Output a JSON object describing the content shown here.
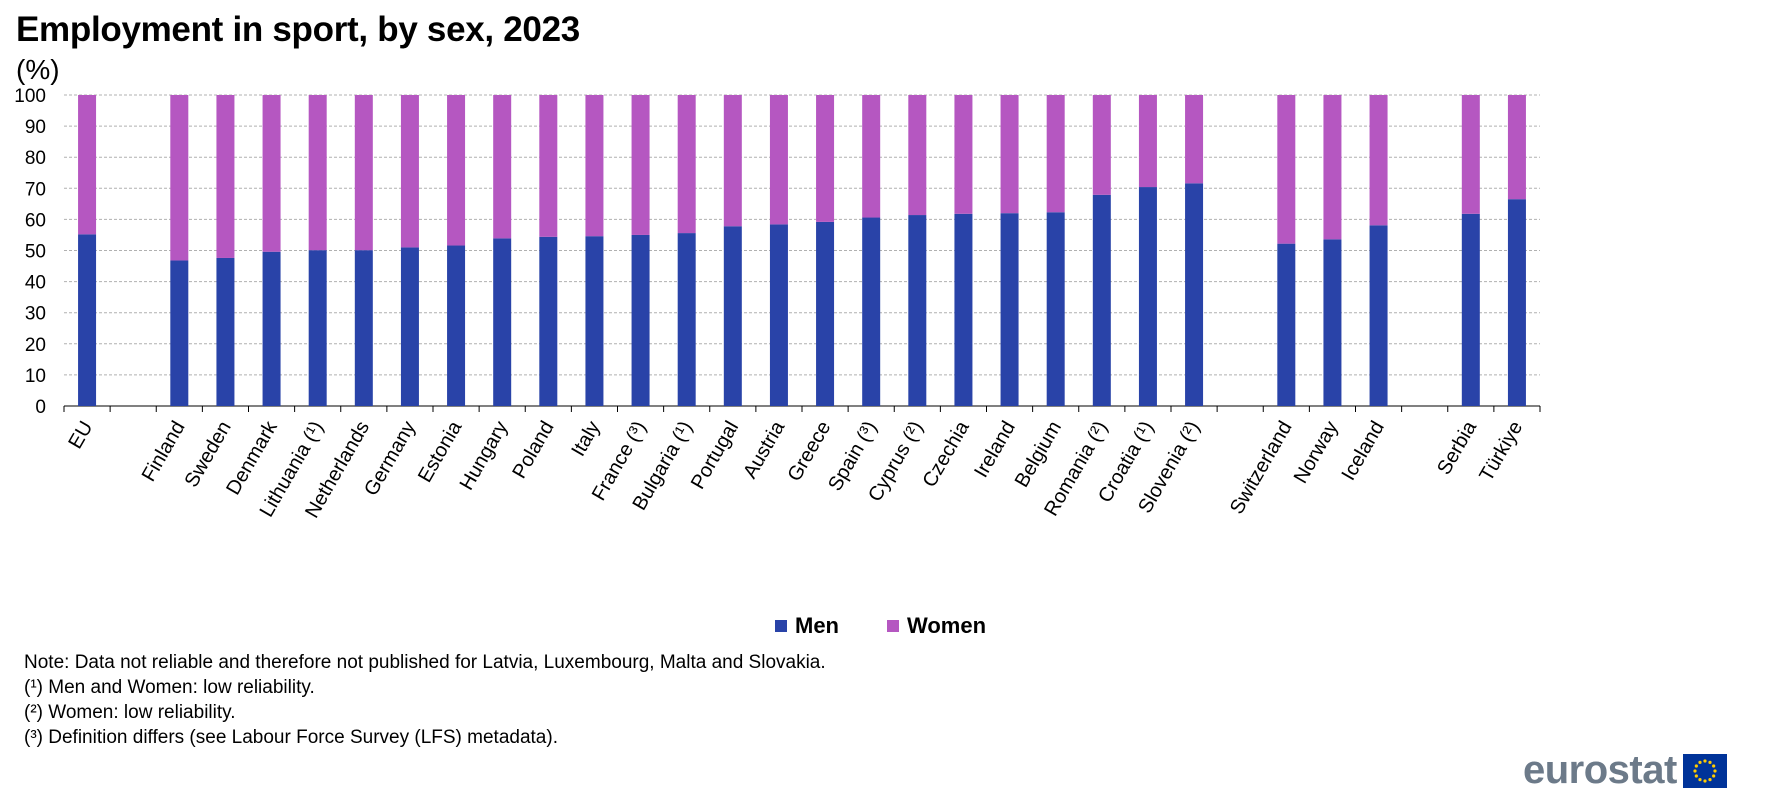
{
  "title": "Employment in sport, by sex, 2023",
  "subtitle": "(%)",
  "legend": {
    "men": "Men",
    "women": "Women"
  },
  "colors": {
    "men": "#2943a8",
    "women": "#b557c1",
    "grid": "#b0b0b0",
    "logo_text": "#6c7a89",
    "flag": "#003399",
    "stars": "#ffcc00"
  },
  "notes": [
    "Note: Data not reliable and therefore not published for Latvia, Luxembourg, Malta and Slovakia.",
    "(¹) Men and Women: low reliability.",
    "(²) Women: low reliability.",
    "(³) Definition differs (see Labour Force Survey (LFS) metadata)."
  ],
  "logo": {
    "text": "eurostat",
    "icon": "eu-flag-icon"
  },
  "chart_data": {
    "type": "bar",
    "stacked": true,
    "title": "Employment in sport, by sex, 2023",
    "ylabel": "(%)",
    "ylim": [
      0,
      100
    ],
    "yticks": [
      0,
      10,
      20,
      30,
      40,
      50,
      60,
      70,
      80,
      90,
      100
    ],
    "grid": true,
    "legend_position": "bottom",
    "categories": [
      "EU",
      "",
      "Finland",
      "Sweden",
      "Denmark",
      "Lithuania (¹)",
      "Netherlands",
      "Germany",
      "Estonia",
      "Hungary",
      "Poland",
      "Italy",
      "France (³)",
      "Bulgaria (¹)",
      "Portugal",
      "Austria",
      "Greece",
      "Spain (³)",
      "Cyprus (²)",
      "Czechia",
      "Ireland",
      "Belgium",
      "Romania (²)",
      "Croatia (¹)",
      "Slovenia (²)",
      "",
      "Switzerland",
      "Norway",
      "Iceland",
      "",
      "Serbia",
      "Türkiye"
    ],
    "series": [
      {
        "name": "Men",
        "values": [
          55.2,
          null,
          46.8,
          47.6,
          49.6,
          50.1,
          50.1,
          51.0,
          51.6,
          53.9,
          54.4,
          54.6,
          55.0,
          55.6,
          57.8,
          58.4,
          59.2,
          60.6,
          61.4,
          61.8,
          62.0,
          62.3,
          67.9,
          70.4,
          71.6,
          null,
          52.2,
          53.6,
          58.1,
          null,
          61.8,
          66.5
        ]
      },
      {
        "name": "Women",
        "values": [
          44.8,
          null,
          53.2,
          52.4,
          50.4,
          49.9,
          49.9,
          49.0,
          48.4,
          46.1,
          45.6,
          45.4,
          45.0,
          44.4,
          42.2,
          41.6,
          40.8,
          39.4,
          38.6,
          38.2,
          38.0,
          37.7,
          32.1,
          29.6,
          28.4,
          null,
          47.8,
          46.4,
          41.9,
          null,
          38.2,
          33.5
        ]
      }
    ]
  }
}
